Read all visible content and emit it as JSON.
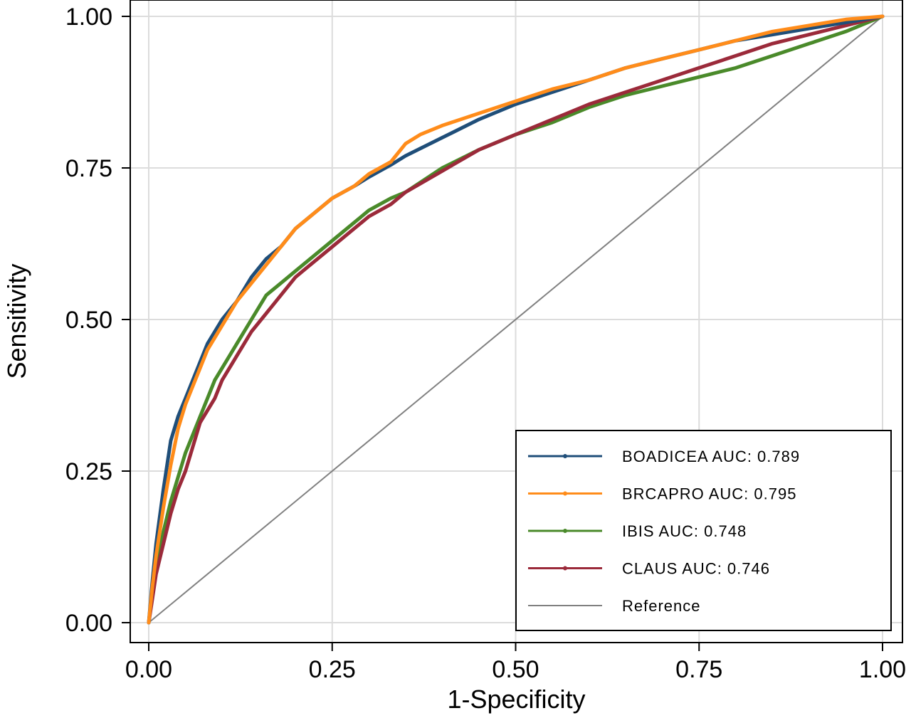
{
  "chart_data": {
    "type": "line",
    "xlabel": "1-Specificity",
    "ylabel": "Sensitivity",
    "xlim": [
      0,
      1
    ],
    "ylim": [
      0,
      1
    ],
    "x_ticks": [
      "0.00",
      "0.25",
      "0.50",
      "0.75",
      "1.00"
    ],
    "y_ticks": [
      "0.00",
      "0.25",
      "0.50",
      "0.75",
      "1.00"
    ],
    "grid": true,
    "legend_position": "bottom-right",
    "series": [
      {
        "name": "BOADICEA AUC: 0.789",
        "color": "#1f4e79",
        "x": [
          0,
          0.005,
          0.01,
          0.02,
          0.03,
          0.04,
          0.05,
          0.06,
          0.07,
          0.08,
          0.09,
          0.1,
          0.12,
          0.14,
          0.16,
          0.18,
          0.2,
          0.22,
          0.25,
          0.28,
          0.3,
          0.33,
          0.35,
          0.4,
          0.45,
          0.5,
          0.55,
          0.6,
          0.65,
          0.7,
          0.75,
          0.8,
          0.85,
          0.9,
          0.95,
          1.0
        ],
        "y": [
          0,
          0.07,
          0.13,
          0.22,
          0.3,
          0.34,
          0.37,
          0.4,
          0.43,
          0.46,
          0.48,
          0.5,
          0.53,
          0.57,
          0.6,
          0.62,
          0.65,
          0.67,
          0.7,
          0.72,
          0.735,
          0.755,
          0.77,
          0.8,
          0.83,
          0.855,
          0.875,
          0.895,
          0.915,
          0.93,
          0.945,
          0.96,
          0.97,
          0.98,
          0.99,
          1.0
        ]
      },
      {
        "name": "BRCAPRO AUC: 0.795",
        "color": "#ff8c1a",
        "x": [
          0,
          0.005,
          0.01,
          0.02,
          0.03,
          0.04,
          0.05,
          0.06,
          0.07,
          0.08,
          0.09,
          0.1,
          0.12,
          0.14,
          0.16,
          0.18,
          0.2,
          0.22,
          0.25,
          0.28,
          0.3,
          0.33,
          0.35,
          0.37,
          0.4,
          0.45,
          0.5,
          0.55,
          0.6,
          0.65,
          0.7,
          0.75,
          0.8,
          0.85,
          0.9,
          0.95,
          1.0
        ],
        "y": [
          0,
          0.06,
          0.11,
          0.19,
          0.26,
          0.32,
          0.36,
          0.39,
          0.42,
          0.45,
          0.47,
          0.49,
          0.53,
          0.56,
          0.59,
          0.62,
          0.65,
          0.67,
          0.7,
          0.72,
          0.74,
          0.76,
          0.79,
          0.805,
          0.82,
          0.84,
          0.86,
          0.88,
          0.895,
          0.915,
          0.93,
          0.945,
          0.96,
          0.975,
          0.985,
          0.995,
          1.0
        ]
      },
      {
        "name": "IBIS AUC: 0.748",
        "color": "#4a8a2a",
        "x": [
          0,
          0.005,
          0.01,
          0.02,
          0.03,
          0.04,
          0.05,
          0.06,
          0.07,
          0.08,
          0.09,
          0.1,
          0.12,
          0.14,
          0.16,
          0.18,
          0.2,
          0.22,
          0.25,
          0.28,
          0.3,
          0.33,
          0.35,
          0.4,
          0.45,
          0.5,
          0.55,
          0.6,
          0.65,
          0.7,
          0.75,
          0.8,
          0.85,
          0.9,
          0.95,
          1.0
        ],
        "y": [
          0,
          0.05,
          0.09,
          0.15,
          0.2,
          0.24,
          0.28,
          0.31,
          0.34,
          0.37,
          0.4,
          0.42,
          0.46,
          0.5,
          0.54,
          0.56,
          0.58,
          0.6,
          0.63,
          0.66,
          0.68,
          0.7,
          0.71,
          0.75,
          0.78,
          0.805,
          0.825,
          0.85,
          0.87,
          0.885,
          0.9,
          0.915,
          0.935,
          0.955,
          0.975,
          1.0
        ]
      },
      {
        "name": "CLAUS AUC: 0.746",
        "color": "#9b2a3a",
        "x": [
          0,
          0.005,
          0.01,
          0.02,
          0.03,
          0.04,
          0.05,
          0.06,
          0.07,
          0.08,
          0.09,
          0.1,
          0.12,
          0.14,
          0.16,
          0.18,
          0.2,
          0.22,
          0.25,
          0.28,
          0.3,
          0.33,
          0.35,
          0.4,
          0.45,
          0.5,
          0.55,
          0.6,
          0.65,
          0.7,
          0.75,
          0.8,
          0.85,
          0.9,
          0.95,
          1.0
        ],
        "y": [
          0,
          0.04,
          0.08,
          0.13,
          0.18,
          0.22,
          0.25,
          0.29,
          0.33,
          0.35,
          0.37,
          0.4,
          0.44,
          0.48,
          0.51,
          0.54,
          0.57,
          0.59,
          0.62,
          0.65,
          0.67,
          0.69,
          0.71,
          0.745,
          0.78,
          0.805,
          0.83,
          0.855,
          0.875,
          0.895,
          0.915,
          0.935,
          0.955,
          0.97,
          0.985,
          1.0
        ]
      },
      {
        "name": "Reference",
        "color": "#808080",
        "x": [
          0,
          1
        ],
        "y": [
          0,
          1
        ]
      }
    ]
  }
}
